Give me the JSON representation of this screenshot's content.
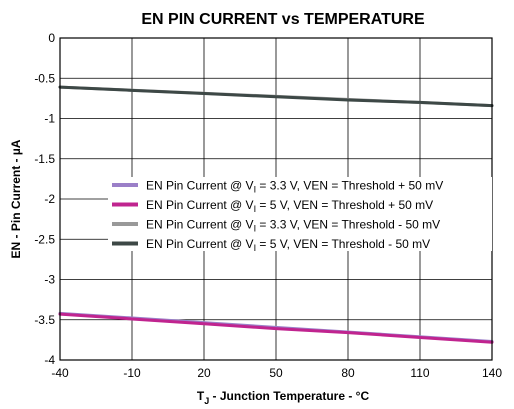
{
  "chart_data": {
    "type": "line",
    "title": "EN PIN CURRENT vs TEMPERATURE",
    "xlabel": {
      "main": "T",
      "sub": "J",
      "rest": " - Junction Temperature - °C"
    },
    "ylabel": "EN - Pin Current - µA",
    "xlim": [
      -40,
      140
    ],
    "ylim": [
      -4,
      0
    ],
    "xticks": [
      -40,
      -10,
      20,
      50,
      80,
      110,
      140
    ],
    "yticks": [
      0,
      -0.5,
      -1,
      -1.5,
      -2,
      -2.5,
      -3,
      -3.5,
      -4
    ],
    "grid": true,
    "legend_position": "center-right",
    "series": [
      {
        "name": {
          "pre": "EN Pin Current @ V",
          "sub": "I",
          "post": " = 3.3 V, VEN = Threshold + 50 mV"
        },
        "color": "#9b7fc8",
        "x": [
          -40,
          140
        ],
        "y": [
          -3.42,
          -3.77
        ]
      },
      {
        "name": {
          "pre": "EN Pin Current @ V",
          "sub": "I",
          "post": " = 5 V, VEN = Threshold + 50 mV"
        },
        "color": "#c0248f",
        "x": [
          -40,
          -10,
          20,
          50,
          80,
          110,
          140
        ],
        "y": [
          -3.43,
          -3.49,
          -3.55,
          -3.61,
          -3.66,
          -3.72,
          -3.78
        ]
      },
      {
        "name": {
          "pre": "EN Pin Current @ V",
          "sub": "I",
          "post": " = 3.3 V, VEN = Threshold - 50 mV"
        },
        "color": "#999999",
        "x": [
          -40,
          140
        ],
        "y": [
          -0.61,
          -0.84
        ]
      },
      {
        "name": {
          "pre": "EN Pin Current @ V",
          "sub": "I",
          "post": " = 5 V, VEN = Threshold - 50 mV"
        },
        "color": "#3d4846",
        "x": [
          -40,
          -10,
          20,
          50,
          80,
          110,
          140
        ],
        "y": [
          -0.61,
          -0.65,
          -0.69,
          -0.73,
          -0.77,
          -0.8,
          -0.84
        ]
      }
    ]
  }
}
